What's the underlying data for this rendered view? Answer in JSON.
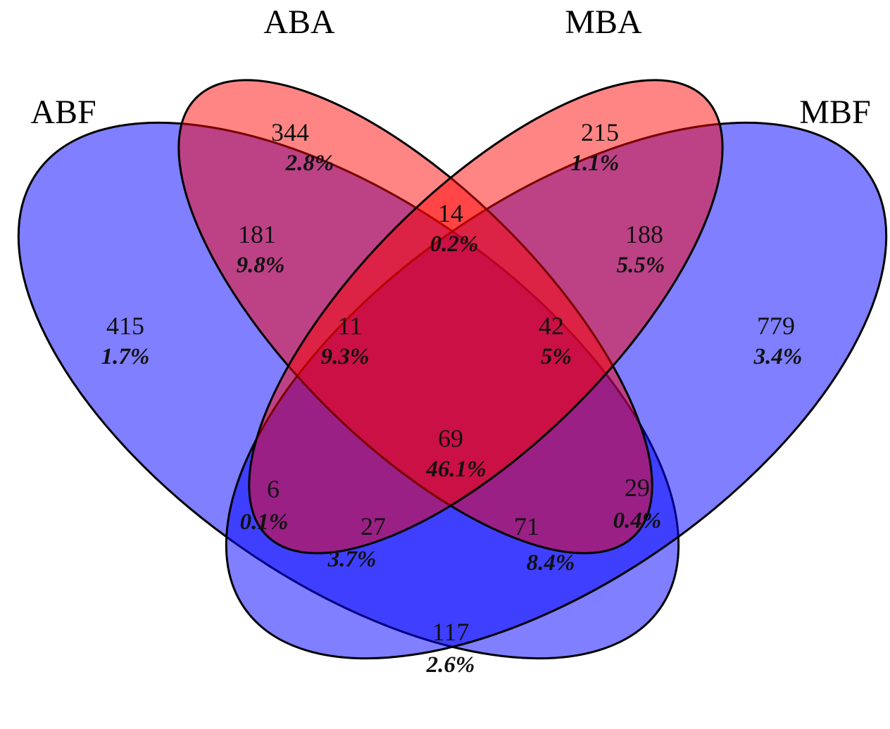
{
  "sets": [
    {
      "id": "ABF",
      "label": "ABF",
      "color": "#0000ff"
    },
    {
      "id": "ABA",
      "label": "ABA",
      "color": "#ff0000"
    },
    {
      "id": "MBA",
      "label": "MBA",
      "color": "#ff0000"
    },
    {
      "id": "MBF",
      "label": "MBF",
      "color": "#0000ff"
    }
  ],
  "regions": [
    {
      "sets": [
        "ABA"
      ],
      "count": "344",
      "percent": "2.8%"
    },
    {
      "sets": [
        "MBA"
      ],
      "count": "215",
      "percent": "1.1%"
    },
    {
      "sets": [
        "ABA",
        "MBA"
      ],
      "count": "14",
      "percent": "0.2%"
    },
    {
      "sets": [
        "ABF",
        "ABA"
      ],
      "count": "181",
      "percent": "9.8%"
    },
    {
      "sets": [
        "MBA",
        "MBF"
      ],
      "count": "188",
      "percent": "5.5%"
    },
    {
      "sets": [
        "ABF"
      ],
      "count": "415",
      "percent": "1.7%"
    },
    {
      "sets": [
        "ABF",
        "ABA",
        "MBA"
      ],
      "count": "11",
      "percent": "9.3%"
    },
    {
      "sets": [
        "ABA",
        "MBA",
        "MBF"
      ],
      "count": "42",
      "percent": "5%"
    },
    {
      "sets": [
        "MBF"
      ],
      "count": "779",
      "percent": "3.4%"
    },
    {
      "sets": [
        "ABF",
        "ABA",
        "MBA",
        "MBF"
      ],
      "count": "69",
      "percent": "46.1%"
    },
    {
      "sets": [
        "ABF",
        "MBA"
      ],
      "count": "6",
      "percent": "0.1%"
    },
    {
      "sets": [
        "ABA",
        "MBF"
      ],
      "count": "29",
      "percent": "0.4%"
    },
    {
      "sets": [
        "ABF",
        "MBA",
        "MBF"
      ],
      "count": "27",
      "percent": "3.7%"
    },
    {
      "sets": [
        "ABF",
        "ABA",
        "MBF"
      ],
      "count": "71",
      "percent": "8.4%"
    },
    {
      "sets": [
        "ABF",
        "MBF"
      ],
      "count": "117",
      "percent": "2.6%"
    }
  ]
}
